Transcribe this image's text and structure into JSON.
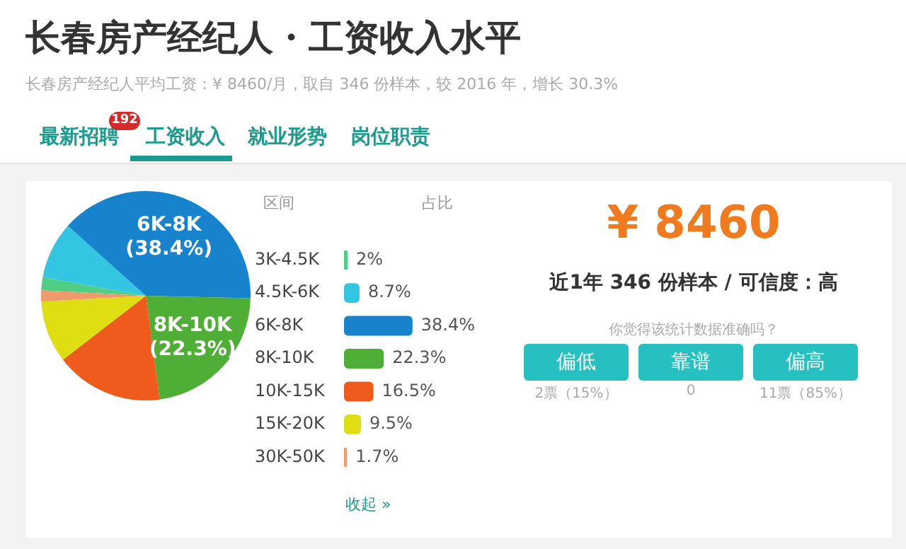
{
  "chart_data": [
    {
      "type": "pie",
      "title": "长春房产经纪人・工资收入水平",
      "subtitle": "长春房产经纪人平均工资：¥ 8460/月，取自 346 份样本，较 2016 年，增长 30.3%",
      "annotations": [
        "最新招聘",
        "192",
        "工资收入",
        "就业形势",
        "岗位职责"
      ],
      "categories": [
        null,
        null,
        "6K-8K",
        "8K-10K",
        null,
        null,
        null
      ],
      "values": [
        2,
        8.7,
        38.4,
        22.3,
        16.5,
        9.5,
        1.7
      ],
      "colors": [
        "#4fcf86",
        "#33c6e2",
        "#1683cc",
        "#4fae35",
        "#ef5b1c",
        "#dede12",
        "#ef9a6a"
      ],
      "value_labels": [
        null,
        null,
        "(38.4%)",
        "(22.3%)",
        null,
        null,
        null
      ]
    },
    {
      "type": "bar",
      "orientation": "horizontal",
      "tick_labels": "y",
      "xlabel": "占比",
      "ylabel": "区间",
      "annotations": [
        "收起 »"
      ],
      "categories": [
        "3K-4.5K",
        "4.5K-6K",
        "6K-8K",
        "8K-10K",
        "10K-15K",
        "15K-20K",
        "30K-50K"
      ],
      "values": [
        2,
        8.7,
        38.4,
        22.3,
        16.5,
        9.5,
        1.7
      ],
      "colors": [
        "#4fcf86",
        "#33c6e2",
        "#1683cc",
        "#4fae35",
        "#ef5b1c",
        "#dede12",
        "#ef9a6a"
      ],
      "value_labels": [
        "2%",
        "8.7%",
        "38.4%",
        "22.3%",
        "16.5%",
        "9.5%",
        "1.7%"
      ]
    },
    {
      "type": "other",
      "annotations": [
        "¥ 8460",
        "近1年 346 份样本 / 可信度：高",
        "你觉得该统计数据准确吗？",
        "偏低",
        "靠谱",
        "偏高",
        "2票（15%）",
        "0",
        "11票（85%）"
      ]
    }
  ]
}
